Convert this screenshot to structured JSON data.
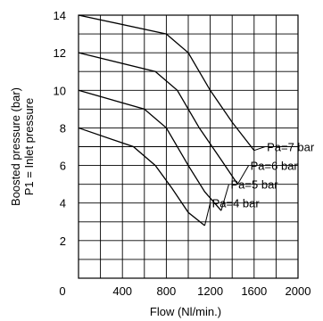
{
  "chart_data": {
    "type": "line",
    "xlabel": "Flow (Nl/min.)",
    "ylabel_lines": [
      "Boosted pressure (bar)",
      "P1 =  Inlet pressure"
    ],
    "xlim": [
      0,
      2000
    ],
    "ylim": [
      0,
      14
    ],
    "x_ticks": [
      0,
      400,
      800,
      1200,
      1600,
      2000
    ],
    "x_tick_labels": [
      "0",
      "400",
      "800",
      "1200",
      "1600",
      "2000"
    ],
    "y_ticks": [
      2,
      4,
      6,
      8,
      10,
      12,
      14
    ],
    "y_tick_labels": [
      "2",
      "4",
      "6",
      "8",
      "10",
      "12",
      "14"
    ],
    "x_grid_step": 200,
    "y_grid_step": 1,
    "grid": true,
    "series": [
      {
        "name": "Pa=7 bar",
        "x": [
          0,
          800,
          1000,
          1200,
          1400,
          1600
        ],
        "y": [
          14,
          13,
          12,
          10,
          8.3,
          6.8
        ],
        "label_anchor": [
          1700,
          7
        ]
      },
      {
        "name": "Pa=6 bar",
        "x": [
          0,
          700,
          900,
          1100,
          1300,
          1450
        ],
        "y": [
          12,
          11,
          10,
          8,
          6.3,
          5
        ],
        "label_anchor": [
          1550,
          6
        ]
      },
      {
        "name": "Pa=5 bar",
        "x": [
          0,
          600,
          800,
          1000,
          1150,
          1300
        ],
        "y": [
          10,
          9,
          8,
          6,
          4.6,
          3.6
        ],
        "label_anchor": [
          1370,
          5
        ]
      },
      {
        "name": "Pa=4 bar",
        "x": [
          0,
          500,
          700,
          850,
          1000,
          1150
        ],
        "y": [
          8,
          7,
          6,
          4.8,
          3.5,
          2.8
        ],
        "label_anchor": [
          1200,
          4
        ]
      }
    ]
  }
}
